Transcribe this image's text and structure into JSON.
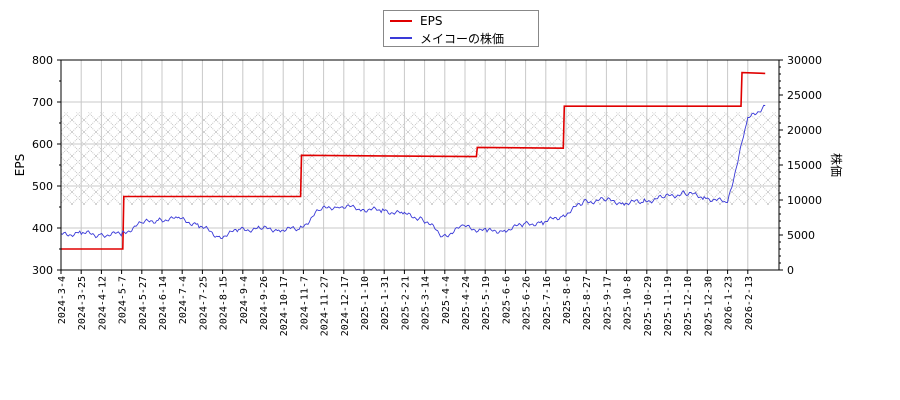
{
  "legend": {
    "items": [
      {
        "label": "EPS",
        "color": "#e00000"
      },
      {
        "label": "メイコーの株価",
        "color": "#3a3ad8"
      }
    ]
  },
  "axes": {
    "left_title": "EPS",
    "right_title": "株価",
    "left_ticks": [
      "800",
      "700",
      "600",
      "500",
      "400",
      "300"
    ],
    "right_ticks": [
      "30000",
      "25000",
      "20000",
      "15000",
      "10000",
      "5000",
      "0"
    ]
  },
  "chart_data": {
    "type": "line",
    "title": "",
    "xlabel": "",
    "ylabel": "EPS",
    "y2label": "株価",
    "ylim": [
      300,
      800
    ],
    "y2lim": [
      0,
      30000
    ],
    "grid": true,
    "legend_position": "top-center",
    "shaded_band_eps": [
      455,
      675
    ],
    "x_tick_labels": [
      "2024-3-4",
      "2024-3-25",
      "2024-4-12",
      "2024-5-7",
      "2024-5-27",
      "2024-6-14",
      "2024-7-4",
      "2024-7-25",
      "2024-8-15",
      "2024-9-4",
      "2024-9-26",
      "2024-10-17",
      "2024-11-7",
      "2024-11-27",
      "2024-12-17",
      "2025-1-10",
      "2025-1-31",
      "2025-2-21",
      "2025-3-14",
      "2025-4-4",
      "2025-4-24",
      "2025-5-19",
      "2025-6-6",
      "2025-6-26",
      "2025-7-16",
      "2025-8-6",
      "2025-8-27",
      "2025-9-17",
      "2025-10-8",
      "2025-10-29",
      "2025-11-19",
      "2025-12-10",
      "2025-12-30",
      "2026-1-23",
      "2026-2-13"
    ],
    "series": [
      {
        "name": "EPS",
        "axis": "left",
        "color": "#e00000",
        "x": [
          "2024-3-4",
          "2024-5-7",
          "2024-5-8",
          "2024-11-7",
          "2024-11-8",
          "2025-5-8",
          "2025-5-9",
          "2025-8-6",
          "2025-8-7",
          "2026-2-6",
          "2026-2-7",
          "2026-3-3"
        ],
        "values": [
          350,
          350,
          475,
          475,
          573,
          570,
          592,
          590,
          690,
          690,
          770,
          768
        ]
      },
      {
        "name": "メイコーの株価",
        "axis": "right",
        "color": "#3a3ad8",
        "x": [
          "2024-3-4",
          "2024-3-25",
          "2024-4-12",
          "2024-5-7",
          "2024-5-27",
          "2024-6-14",
          "2024-7-4",
          "2024-7-25",
          "2024-8-15",
          "2024-9-4",
          "2024-9-26",
          "2024-10-17",
          "2024-11-7",
          "2024-11-27",
          "2024-12-17",
          "2025-1-10",
          "2025-1-31",
          "2025-2-21",
          "2025-3-14",
          "2025-4-4",
          "2025-4-24",
          "2025-5-19",
          "2025-6-6",
          "2025-6-26",
          "2025-7-16",
          "2025-8-6",
          "2025-8-27",
          "2025-9-17",
          "2025-10-8",
          "2025-10-29",
          "2025-11-19",
          "2025-12-10",
          "2025-12-30",
          "2026-1-23",
          "2026-2-13",
          "2026-3-3"
        ],
        "values": [
          5000,
          5300,
          5000,
          5200,
          6700,
          7200,
          7300,
          6400,
          4700,
          5700,
          5900,
          5800,
          5900,
          8600,
          9200,
          8700,
          8500,
          8000,
          7300,
          4800,
          6200,
          5500,
          5700,
          6500,
          6800,
          7800,
          9700,
          10000,
          9600,
          9800,
          10400,
          11000,
          10400,
          9600,
          21500,
          23500
        ]
      }
    ]
  }
}
